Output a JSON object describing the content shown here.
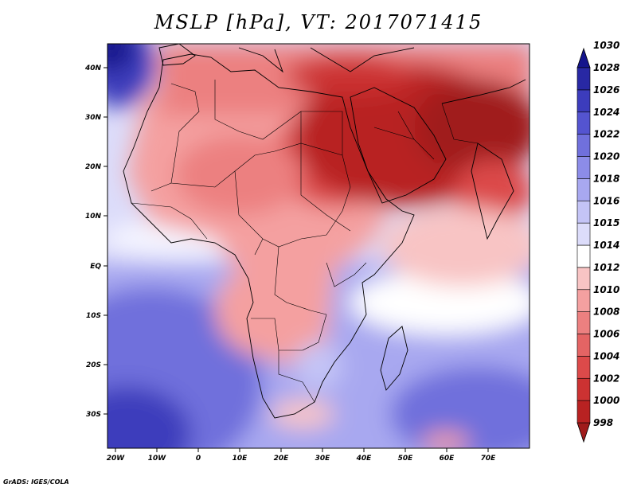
{
  "title": "MSLP [hPa], VT: 2017071415",
  "credit": "GrADS: IGES/COLA",
  "lon_ticks": [
    "20W",
    "10W",
    "0",
    "10E",
    "20E",
    "30E",
    "40E",
    "50E",
    "60E",
    "70E"
  ],
  "lat_ticks": [
    "40N",
    "30N",
    "20N",
    "10N",
    "EQ",
    "10S",
    "20S",
    "30S"
  ],
  "colorbar": {
    "levels": [
      "998",
      "1000",
      "1002",
      "1004",
      "1006",
      "1008",
      "1010",
      "1012",
      "1014",
      "1015",
      "1016",
      "1018",
      "1020",
      "1022",
      "1024",
      "1026",
      "1028",
      "1030"
    ],
    "colors": [
      "#a01b1b",
      "#b82222",
      "#cc3232",
      "#dc4a4a",
      "#e46464",
      "#ec8080",
      "#f4a0a0",
      "#f8c4c4",
      "#ffffff",
      "#dcdcfa",
      "#c4c4f6",
      "#a8a8f0",
      "#8c8ce8",
      "#7070dc",
      "#5454d0",
      "#3c3cbc",
      "#2828a4",
      "#14148c"
    ]
  },
  "colors": {
    "land_outline": "#000000",
    "ocean_south_atlantic": "#8c8ce8",
    "heat_low": "#b82222"
  }
}
